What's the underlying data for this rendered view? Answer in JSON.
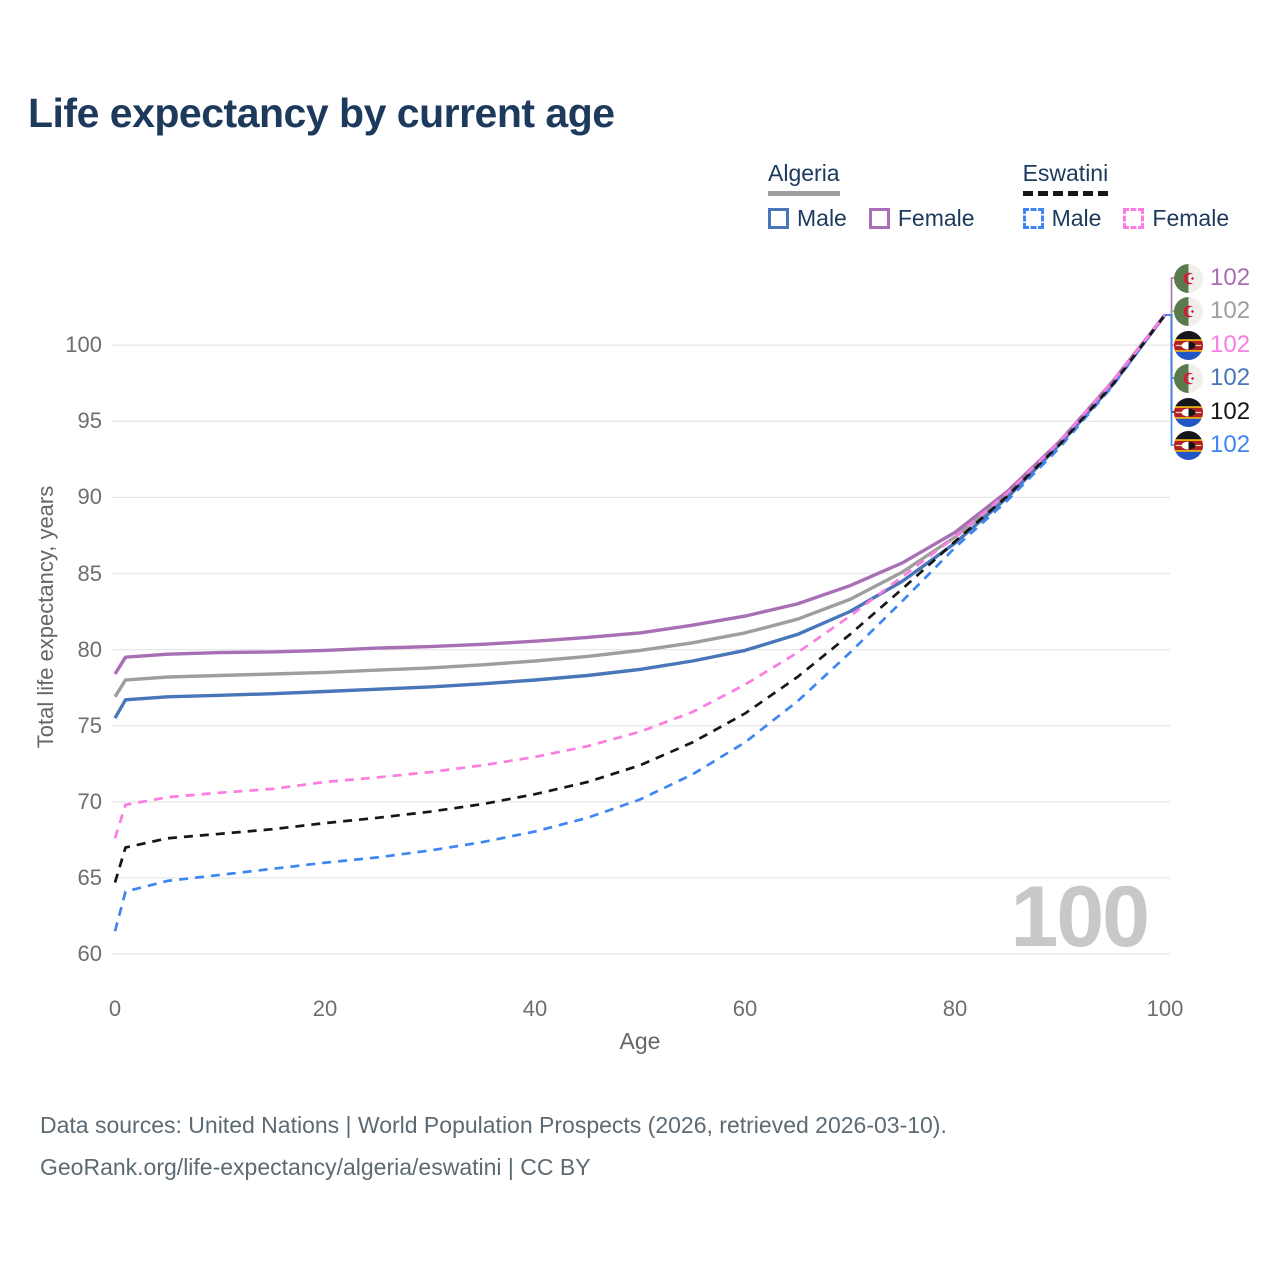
{
  "header": {
    "title": "Life expectancy by current age"
  },
  "legend": {
    "groups": [
      {
        "name": "Algeria",
        "line_style": "solid",
        "line_color": "#9e9e9e",
        "items": [
          {
            "label": "Male",
            "color": "#4876b9",
            "dash": false
          },
          {
            "label": "Female",
            "color": "#a96fb5",
            "dash": false
          }
        ]
      },
      {
        "name": "Eswatini",
        "line_style": "dashed",
        "line_color": "#161616",
        "items": [
          {
            "label": "Male",
            "color": "#3f86f2",
            "dash": true
          },
          {
            "label": "Female",
            "color": "#fb7de1",
            "dash": true
          }
        ]
      }
    ]
  },
  "chart_data": {
    "type": "line",
    "title": "Life expectancy by current age",
    "xlabel": "Age",
    "ylabel": "Total life expectancy, years",
    "xlim": [
      0,
      100
    ],
    "ylim": [
      60,
      103
    ],
    "xticks": [
      0,
      20,
      40,
      60,
      80,
      100
    ],
    "yticks": [
      60,
      65,
      70,
      75,
      80,
      85,
      90,
      95,
      100
    ],
    "grid": "horizontal",
    "legend_position": "top-right",
    "watermark": "100",
    "x": [
      0,
      1,
      5,
      10,
      15,
      20,
      25,
      30,
      35,
      40,
      45,
      50,
      55,
      60,
      65,
      70,
      75,
      80,
      85,
      90,
      95,
      100
    ],
    "series": [
      {
        "name": "Algeria Female",
        "country": "Algeria",
        "style": "solid",
        "color": "#a96fb5",
        "values": [
          78.4,
          79.5,
          79.7,
          79.8,
          79.85,
          79.95,
          80.1,
          80.2,
          80.35,
          80.55,
          80.8,
          81.1,
          81.6,
          82.2,
          83.0,
          84.2,
          85.7,
          87.7,
          90.4,
          93.7,
          97.6,
          102
        ]
      },
      {
        "name": "Algeria",
        "country": "Algeria",
        "style": "solid",
        "color": "#9e9e9e",
        "values": [
          76.9,
          78.0,
          78.2,
          78.3,
          78.4,
          78.5,
          78.65,
          78.8,
          79.0,
          79.25,
          79.55,
          79.95,
          80.45,
          81.1,
          82.0,
          83.3,
          85.1,
          87.4,
          90.2,
          93.6,
          97.5,
          102
        ]
      },
      {
        "name": "Algeria Male",
        "country": "Algeria",
        "style": "solid",
        "color": "#4876b9",
        "values": [
          75.5,
          76.7,
          76.9,
          77.0,
          77.1,
          77.25,
          77.4,
          77.55,
          77.75,
          78.0,
          78.3,
          78.7,
          79.25,
          79.95,
          81.0,
          82.5,
          84.5,
          87.0,
          90.0,
          93.5,
          97.4,
          102
        ]
      },
      {
        "name": "Eswatini Female",
        "country": "Eswatini",
        "style": "dashed",
        "color": "#fb7de1",
        "values": [
          67.6,
          69.8,
          70.3,
          70.6,
          70.85,
          71.3,
          71.6,
          71.95,
          72.4,
          72.95,
          73.65,
          74.6,
          75.9,
          77.7,
          79.8,
          82.2,
          84.8,
          87.4,
          90.3,
          93.7,
          97.6,
          102
        ]
      },
      {
        "name": "Eswatini",
        "country": "Eswatini",
        "style": "dashed",
        "color": "#161616",
        "values": [
          64.7,
          67.0,
          67.6,
          67.9,
          68.2,
          68.6,
          68.95,
          69.35,
          69.85,
          70.5,
          71.3,
          72.4,
          73.9,
          75.8,
          78.2,
          81.0,
          84.0,
          87.1,
          90.1,
          93.5,
          97.4,
          102
        ]
      },
      {
        "name": "Eswatini Male",
        "country": "Eswatini",
        "style": "dashed",
        "color": "#3f86f2",
        "values": [
          61.5,
          64.1,
          64.8,
          65.2,
          65.6,
          66.0,
          66.35,
          66.8,
          67.35,
          68.05,
          68.95,
          70.15,
          71.8,
          73.9,
          76.6,
          79.8,
          83.2,
          86.7,
          89.8,
          93.3,
          97.3,
          102
        ]
      }
    ],
    "end_labels": [
      {
        "country": "Algeria",
        "series": "Female",
        "value": "102",
        "color": "#a96fb5"
      },
      {
        "country": "Algeria",
        "series": "Both",
        "value": "102",
        "color": "#9e9e9e"
      },
      {
        "country": "Eswatini",
        "series": "Female",
        "value": "102",
        "color": "#fb7de1"
      },
      {
        "country": "Algeria",
        "series": "Male",
        "value": "102",
        "color": "#4876b9"
      },
      {
        "country": "Eswatini",
        "series": "Both",
        "value": "102",
        "color": "#161616"
      },
      {
        "country": "Eswatini",
        "series": "Male",
        "value": "102",
        "color": "#3f86f2"
      }
    ]
  },
  "footer": {
    "line1": "Data sources: United Nations | World Population Prospects (2026, retrieved 2026-03-10).",
    "line2": "GeoRank.org/life-expectancy/algeria/eswatini | CC BY"
  }
}
